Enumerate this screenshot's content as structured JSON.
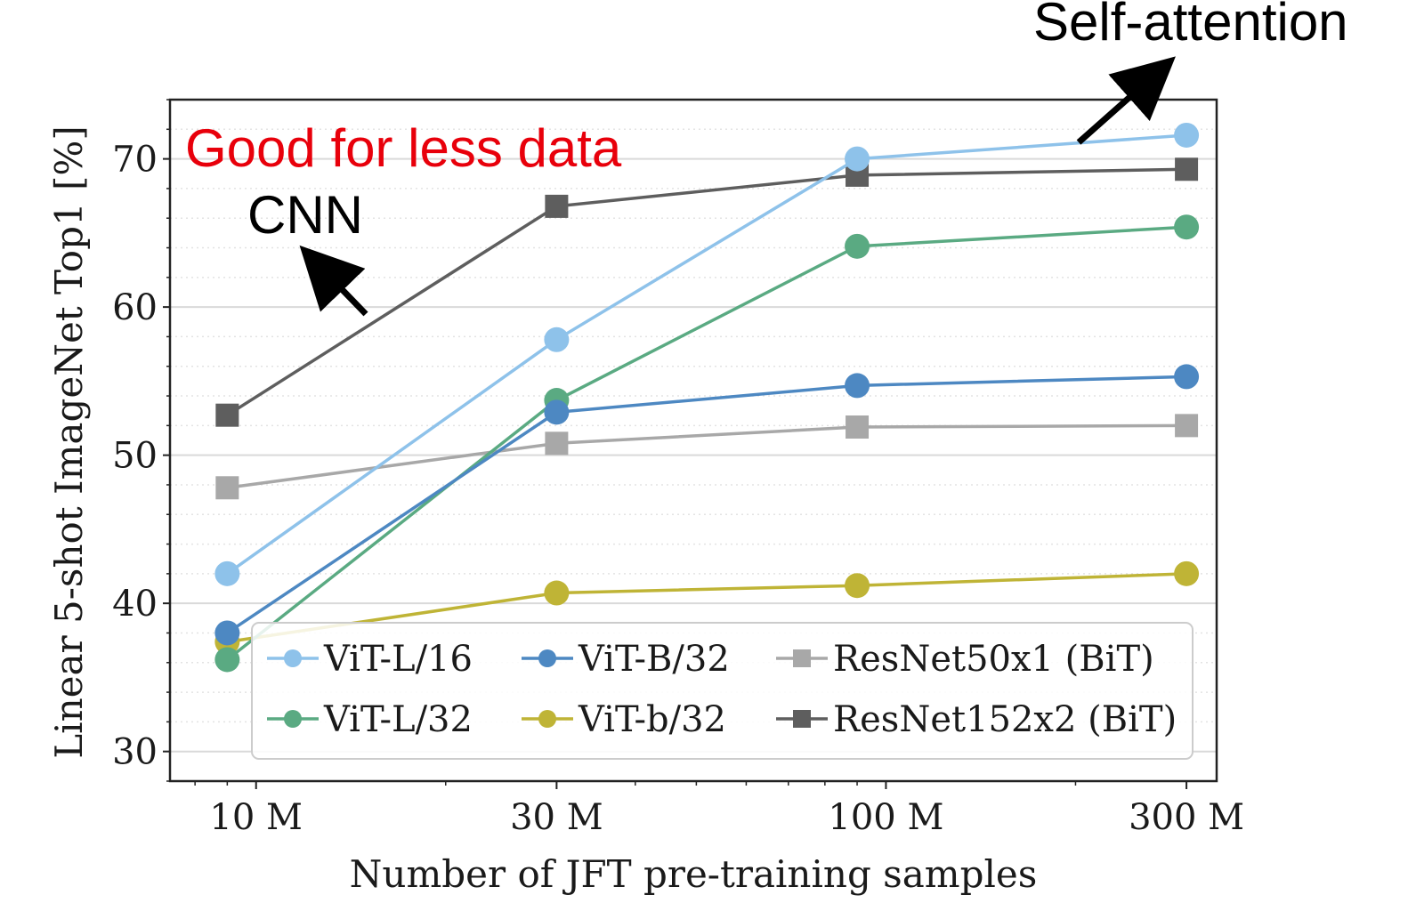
{
  "chart_data": {
    "type": "line",
    "xlabel": "Number of JFT pre-training samples",
    "ylabel": "Linear 5-shot ImageNet Top1 [%]",
    "x_scale": "log",
    "x": [
      9,
      30,
      90,
      300
    ],
    "x_ticks": [
      {
        "value": 10,
        "label": "10 M"
      },
      {
        "value": 30,
        "label": "30 M"
      },
      {
        "value": 100,
        "label": "100 M"
      },
      {
        "value": 300,
        "label": "300 M"
      }
    ],
    "y_ticks": [
      30,
      40,
      50,
      60,
      70
    ],
    "ylim": [
      28,
      74
    ],
    "xlim": [
      7.3,
      335
    ],
    "grid": true,
    "legend_position": "lower-right",
    "series": [
      {
        "name": "ViT-L/16",
        "marker": "circle",
        "color": "#8ec2ea",
        "values": [
          42.0,
          57.8,
          70.0,
          71.6
        ]
      },
      {
        "name": "ViT-B/32",
        "marker": "circle",
        "color": "#4d88c2",
        "values": [
          38.0,
          52.9,
          54.7,
          55.3
        ]
      },
      {
        "name": "ResNet50x1 (BiT)",
        "marker": "square",
        "color": "#a8a8a8",
        "values": [
          47.8,
          50.8,
          51.9,
          52.0
        ]
      },
      {
        "name": "ViT-L/32",
        "marker": "circle",
        "color": "#5aaa82",
        "values": [
          36.2,
          53.7,
          64.1,
          65.4
        ]
      },
      {
        "name": "ViT-b/32",
        "marker": "circle",
        "color": "#bfb436",
        "values": [
          37.4,
          40.7,
          41.2,
          42.0
        ]
      },
      {
        "name": "ResNet152x2 (BiT)",
        "marker": "square",
        "color": "#5e5e5e",
        "values": [
          52.7,
          66.8,
          68.9,
          69.3
        ]
      }
    ],
    "annotations": [
      {
        "text": "Self-attention",
        "color": "#000000",
        "arrow": true
      },
      {
        "text": "Good for less data",
        "color": "#e8000b",
        "arrow": false
      },
      {
        "text": "CNN",
        "color": "#000000",
        "arrow": true
      }
    ]
  }
}
